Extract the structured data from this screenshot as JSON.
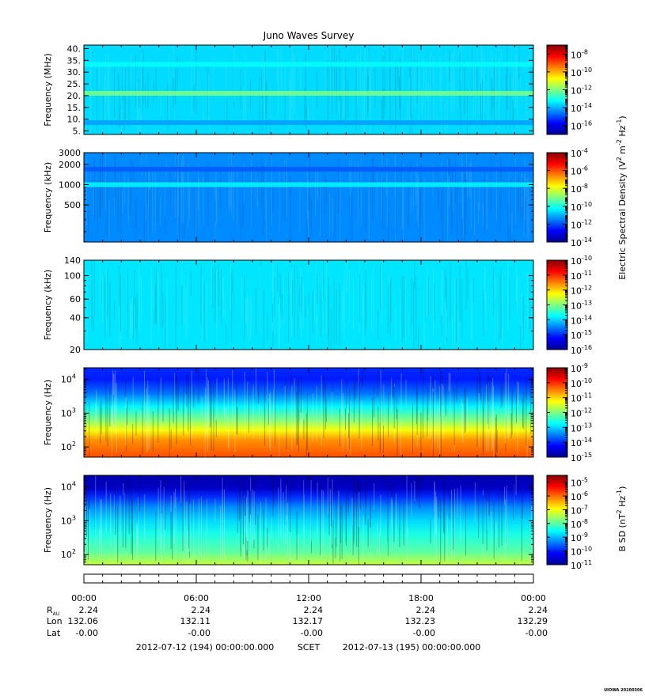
{
  "title": "Juno Waves Survey",
  "footer": {
    "scet_start": "2012-07-12 (194) 00:00:00.000",
    "scet_label": "SCET",
    "scet_end": "2012-07-13 (195) 00:00:00.000",
    "credit": "UIOWA 20200306"
  },
  "ephemeris": {
    "rows": [
      {
        "label_main": "R",
        "label_sub": "AU",
        "values": [
          "2.24",
          "2.24",
          "2.24",
          "2.24",
          "2.24"
        ]
      },
      {
        "label_main": "Lon",
        "label_sub": "",
        "values": [
          "132.06",
          "132.11",
          "132.17",
          "132.23",
          "132.29"
        ]
      },
      {
        "label_main": "Lat",
        "label_sub": "",
        "values": [
          "-0.00",
          "-0.00",
          "-0.00",
          "-0.00",
          "-0.00"
        ]
      }
    ]
  },
  "colorbar_labels": {
    "electric": {
      "text": "Electric Spectral Density (V",
      "sup1": "2",
      "mid": " m",
      "sup2": "-2",
      "mid2": " Hz",
      "sup3": "-1",
      "end": ")"
    },
    "magnetic": {
      "text": "B SD (nT",
      "sup1": "2",
      "mid": " Hz",
      "sup2": "-1",
      "end": ")"
    }
  },
  "colors": {
    "jet": [
      "#00008f",
      "#0000ff",
      "#0080ff",
      "#00ffff",
      "#80ff80",
      "#ffff00",
      "#ff8000",
      "#ff0000",
      "#800000"
    ],
    "band_bright": "#55ee33",
    "band_dark": "#11c244"
  },
  "chart_data": [
    {
      "type": "heatmap",
      "ylabel": "Frequency (MHz)",
      "yticks": [
        5,
        10,
        15,
        20,
        25,
        30,
        35,
        40
      ],
      "ytick_labels": [
        "5.",
        "10.",
        "15.",
        "20.",
        "25.",
        "30.",
        "35.",
        "40."
      ],
      "ylim": [
        3.5,
        41.5
      ],
      "log": false,
      "xlim_hours": [
        0,
        24
      ],
      "colorbar": {
        "exp_min": -17,
        "exp_max": -7,
        "tick_exps": [
          -16,
          -14,
          -12,
          -10,
          -8
        ],
        "tick_labels": [
          "10",
          "10",
          "10",
          "10",
          "10"
        ],
        "tick_sups": [
          "-16",
          "-14",
          "-12",
          "-10",
          "-8"
        ]
      },
      "background_log_density": -13.6,
      "bands": [
        {
          "freq": 21,
          "log_density": -12.0
        },
        {
          "freq": 8.5,
          "log_density": -14.2
        },
        {
          "freq": 33.3,
          "log_density": -13.2
        }
      ]
    },
    {
      "type": "heatmap",
      "ylabel": "Frequency (kHz)",
      "yticks": [
        500,
        1000,
        2000,
        3000
      ],
      "ytick_labels": [
        "500",
        "1000",
        "2000",
        "3000"
      ],
      "ylim": [
        140,
        3000
      ],
      "log": true,
      "xlim_hours": [
        0,
        24
      ],
      "colorbar": {
        "exp_min": -14,
        "exp_max": -4,
        "tick_exps": [
          -14,
          -12,
          -10,
          -8,
          -6,
          -4
        ],
        "tick_labels": [
          "10",
          "10",
          "10",
          "10",
          "10",
          "10"
        ],
        "tick_sups": [
          "-14",
          "-12",
          "-10",
          "-8",
          "-6",
          "-4"
        ]
      },
      "background_log_density": -11.4,
      "bands": [
        {
          "freq": 1000,
          "log_density": -10.3
        },
        {
          "freq": 1700,
          "log_density": -11.9
        }
      ]
    },
    {
      "type": "heatmap",
      "ylabel": "Frequency (kHz)",
      "yticks": [
        20,
        40,
        60,
        100,
        140
      ],
      "ytick_labels": [
        "20",
        "40",
        "60",
        "100",
        "140"
      ],
      "ylim": [
        20,
        140
      ],
      "log": true,
      "xlim_hours": [
        0,
        24
      ],
      "colorbar": {
        "exp_min": -16,
        "exp_max": -10,
        "tick_exps": [
          -16,
          -15,
          -14,
          -13,
          -12,
          -11,
          -10
        ],
        "tick_labels": [
          "10",
          "10",
          "10",
          "10",
          "10",
          "10",
          "10"
        ],
        "tick_sups": [
          "-16",
          "-15",
          "-14",
          "-13",
          "-12",
          "-11",
          "-10"
        ]
      },
      "background_log_density": -13.9,
      "bands": []
    },
    {
      "type": "heatmap",
      "ylabel": "Frequency (Hz)",
      "yticks": [
        100,
        1000,
        10000
      ],
      "ytick_labels": [
        "10",
        "10",
        "10"
      ],
      "ytick_sups": [
        "2",
        "3",
        "4"
      ],
      "ylim": [
        50,
        22000
      ],
      "log": true,
      "xlim_hours": [
        0,
        24
      ],
      "colorbar": {
        "exp_min": -15,
        "exp_max": -9,
        "tick_exps": [
          -15,
          -14,
          -13,
          -12,
          -11,
          -10,
          -9
        ],
        "tick_labels": [
          "10",
          "10",
          "10",
          "10",
          "10",
          "10",
          "10"
        ],
        "tick_sups": [
          "-15",
          "-14",
          "-13",
          "-12",
          "-11",
          "-10",
          "-9"
        ]
      },
      "profile": [
        {
          "log_freq": 1.7,
          "log_density": -10.2
        },
        {
          "log_freq": 2.2,
          "log_density": -10.6
        },
        {
          "log_freq": 2.5,
          "log_density": -11.3
        },
        {
          "log_freq": 2.8,
          "log_density": -12.0
        },
        {
          "log_freq": 3.2,
          "log_density": -12.8
        },
        {
          "log_freq": 3.6,
          "log_density": -13.6
        },
        {
          "log_freq": 4.0,
          "log_density": -14.1
        },
        {
          "log_freq": 4.35,
          "log_density": -14.0
        }
      ]
    },
    {
      "type": "heatmap",
      "ylabel": "Frequency (Hz)",
      "yticks": [
        100,
        1000,
        10000
      ],
      "ytick_labels": [
        "10",
        "10",
        "10"
      ],
      "ytick_sups": [
        "2",
        "3",
        "4"
      ],
      "ylim": [
        50,
        22000
      ],
      "log": true,
      "xlim_hours": [
        0,
        24
      ],
      "colorbar": {
        "exp_min": -11,
        "exp_max": -4.5,
        "tick_exps": [
          -11,
          -10,
          -9,
          -8,
          -7,
          -6,
          -5
        ],
        "tick_labels": [
          "10",
          "10",
          "10",
          "10",
          "10",
          "10",
          "10"
        ],
        "tick_sups": [
          "-11",
          "-10",
          "-9",
          "-8",
          "-7",
          "-6",
          "-5"
        ]
      },
      "profile": [
        {
          "log_freq": 1.7,
          "log_density": -7.3
        },
        {
          "log_freq": 2.1,
          "log_density": -8.0
        },
        {
          "log_freq": 2.6,
          "log_density": -8.4
        },
        {
          "log_freq": 3.0,
          "log_density": -8.8
        },
        {
          "log_freq": 3.4,
          "log_density": -9.3
        },
        {
          "log_freq": 3.7,
          "log_density": -9.9
        },
        {
          "log_freq": 3.95,
          "log_density": -10.6
        },
        {
          "log_freq": 4.35,
          "log_density": -10.8
        }
      ]
    }
  ],
  "time_axis": {
    "ticks_hours": [
      0,
      6,
      12,
      18,
      24
    ],
    "tick_labels": [
      "00:00",
      "06:00",
      "12:00",
      "18:00",
      "00:00"
    ],
    "minor_step_hours": 1
  }
}
